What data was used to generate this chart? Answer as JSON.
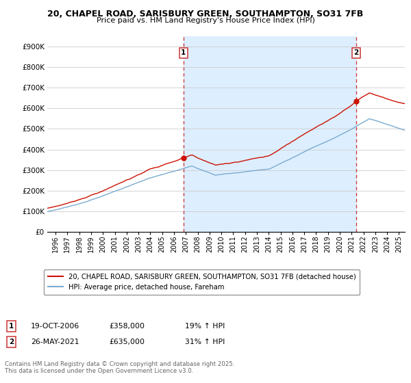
{
  "title": "20, CHAPEL ROAD, SARISBURY GREEN, SOUTHAMPTON, SO31 7FB",
  "subtitle": "Price paid vs. HM Land Registry's House Price Index (HPI)",
  "legend_line1": "20, CHAPEL ROAD, SARISBURY GREEN, SOUTHAMPTON, SO31 7FB (detached house)",
  "legend_line2": "HPI: Average price, detached house, Fareham",
  "annotation1_label": "1",
  "annotation1_date": "19-OCT-2006",
  "annotation1_price": "£358,000",
  "annotation1_hpi": "19% ↑ HPI",
  "annotation2_label": "2",
  "annotation2_date": "26-MAY-2021",
  "annotation2_price": "£635,000",
  "annotation2_hpi": "31% ↑ HPI",
  "footnote": "Contains HM Land Registry data © Crown copyright and database right 2025.\nThis data is licensed under the Open Government Licence v3.0.",
  "sale1_year": 2006.8,
  "sale1_value": 358000,
  "sale2_year": 2021.4,
  "sale2_value": 635000,
  "hpi_color": "#7aabcf",
  "price_color": "#cc1100",
  "vline_color": "#cc3333",
  "shade_color": "#ddeeff",
  "background_color": "#ffffff",
  "grid_color": "#cccccc",
  "ylim": [
    0,
    950000
  ],
  "xlim_start": 1995.5,
  "xlim_end": 2025.5,
  "yticks": [
    0,
    100000,
    200000,
    300000,
    400000,
    500000,
    600000,
    700000,
    800000,
    900000
  ],
  "ylabels": [
    "£0",
    "£100K",
    "£200K",
    "£300K",
    "£400K",
    "£500K",
    "£600K",
    "£700K",
    "£800K",
    "£900K"
  ]
}
